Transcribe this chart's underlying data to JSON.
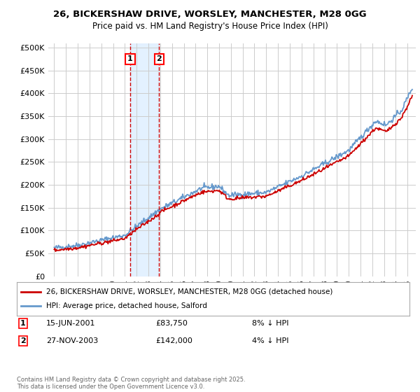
{
  "title_line1": "26, BICKERSHAW DRIVE, WORSLEY, MANCHESTER, M28 0GG",
  "title_line2": "Price paid vs. HM Land Registry's House Price Index (HPI)",
  "background_color": "#ffffff",
  "plot_bg_color": "#ffffff",
  "grid_color": "#cccccc",
  "legend_label_red": "26, BICKERSHAW DRIVE, WORSLEY, MANCHESTER, M28 0GG (detached house)",
  "legend_label_blue": "HPI: Average price, detached house, Salford",
  "footnote": "Contains HM Land Registry data © Crown copyright and database right 2025.\nThis data is licensed under the Open Government Licence v3.0.",
  "sale1_date": "15-JUN-2001",
  "sale1_price": "£83,750",
  "sale1_hpi": "8% ↓ HPI",
  "sale2_date": "27-NOV-2003",
  "sale2_price": "£142,000",
  "sale2_hpi": "4% ↓ HPI",
  "red_color": "#cc0000",
  "blue_color": "#6699cc",
  "shade_color": "#ddeeff",
  "vline_color": "#cc0000",
  "marker1_x_year": 2001.45,
  "marker2_x_year": 2003.9,
  "ylim_max": 510000,
  "ylim_min": 0,
  "xlim_min": 1994.5,
  "xlim_max": 2025.7
}
